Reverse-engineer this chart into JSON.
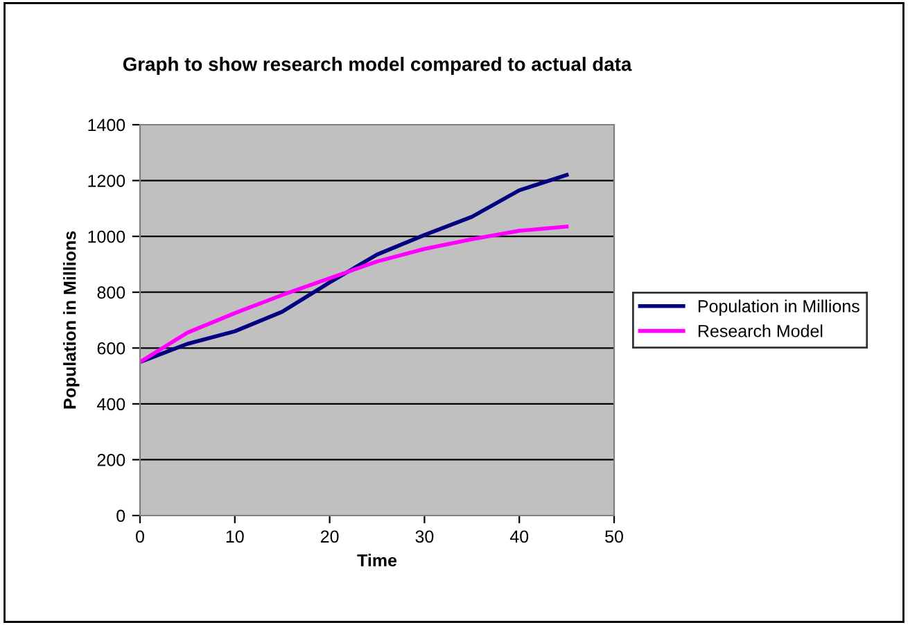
{
  "chart_data": {
    "type": "line",
    "title": "Graph to show research model compared to actual data",
    "xlabel": "Time",
    "ylabel": "Population in Millions",
    "x": [
      0,
      5,
      10,
      15,
      20,
      25,
      30,
      35,
      40,
      45
    ],
    "series": [
      {
        "name": "Population in Millions",
        "color": "#000080",
        "values": [
          550,
          615,
          660,
          730,
          835,
          935,
          1005,
          1070,
          1165,
          1220
        ]
      },
      {
        "name": "Research Model",
        "color": "#ff00ff",
        "values": [
          550,
          655,
          725,
          790,
          850,
          910,
          955,
          990,
          1020,
          1035
        ]
      }
    ],
    "xlim": [
      0,
      50
    ],
    "xticks": [
      0,
      10,
      20,
      30,
      40,
      50
    ],
    "ylim": [
      0,
      1400
    ],
    "yticks": [
      0,
      200,
      400,
      600,
      800,
      1000,
      1200,
      1400
    ],
    "grid": "y",
    "legend": "right",
    "marker": "none",
    "line_style": "solid"
  }
}
